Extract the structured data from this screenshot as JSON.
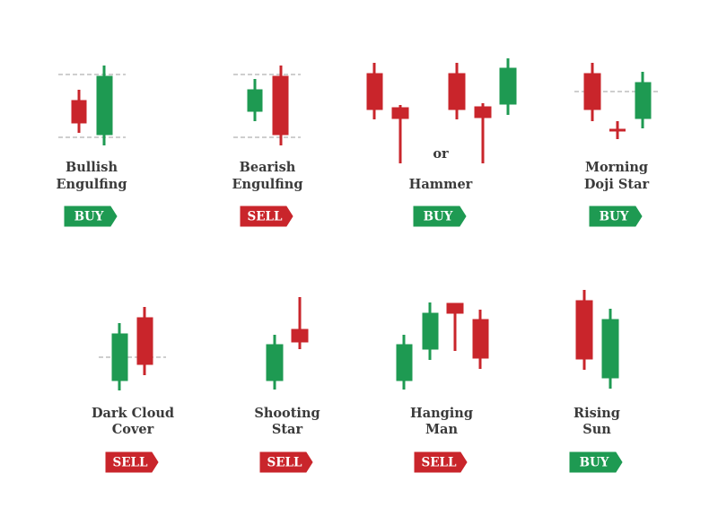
{
  "patterns": [
    {
      "name": [
        "Bullish",
        "Engulfing"
      ],
      "signal": "BUY"
    },
    {
      "name": [
        "Bearish",
        "Engulfing"
      ],
      "signal": "SELL"
    },
    {
      "name": [
        "Hammer"
      ],
      "signal": "BUY",
      "separator": "or"
    },
    {
      "name": [
        "Morning",
        "Doji Star"
      ],
      "signal": "BUY"
    },
    {
      "name": [
        "Dark Cloud",
        "Cover"
      ],
      "signal": "SELL"
    },
    {
      "name": [
        "Shooting",
        "Star"
      ],
      "signal": "SELL"
    },
    {
      "name": [
        "Hanging",
        "Man"
      ],
      "signal": "SELL"
    },
    {
      "name": [
        "Rising",
        "Sun"
      ],
      "signal": "BUY"
    }
  ]
}
